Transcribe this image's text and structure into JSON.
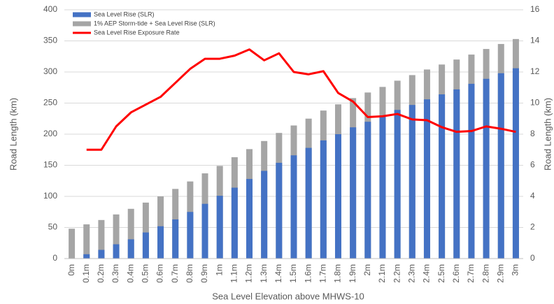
{
  "chart_data": {
    "type": "bar",
    "x_label": "Sea Level Elevation above MHWS-10",
    "y_label": "Road Length (km)",
    "y2_label": "Road Length (km)",
    "categories": [
      "0m",
      "0.1m",
      "0.2m",
      "0.3m",
      "0.4m",
      "0.5m",
      "0.6m",
      "0.7m",
      "0.8m",
      "0.9m",
      "1m",
      "1.1m",
      "1.2m",
      "1.3m",
      "1.4m",
      "1.5m",
      "1.6m",
      "1.7m",
      "1.8m",
      "1.9m",
      "2m",
      "2.1m",
      "2.2m",
      "2.3m",
      "2.4m",
      "2.5m",
      "2.6m",
      "2.7m",
      "2.8m",
      "2.9m",
      "3m"
    ],
    "series": [
      {
        "name": "Sea Level Rise (SLR)",
        "type": "bar",
        "color": "#4472c4",
        "values": [
          0,
          7,
          14,
          23,
          31,
          42,
          52,
          63,
          75,
          88,
          101,
          114,
          128,
          141,
          154,
          166,
          178,
          190,
          200,
          211,
          220,
          229,
          239,
          247,
          256,
          264,
          272,
          281,
          289,
          298,
          306
        ]
      },
      {
        "name": "1% AEP Storm-tide + Sea Level Rise (SLR)",
        "type": "bar",
        "color": "#a5a5a5",
        "values": [
          48,
          55,
          62,
          71,
          80,
          90,
          100,
          112,
          124,
          137,
          149,
          163,
          176,
          189,
          202,
          214,
          225,
          238,
          248,
          258,
          267,
          276,
          286,
          295,
          304,
          312,
          320,
          328,
          337,
          345,
          353
        ]
      },
      {
        "name": "Sea Level Rise Exposure Rate",
        "type": "line",
        "axis": "y2",
        "color": "#ff0000",
        "values": [
          null,
          7.0,
          7.0,
          8.5,
          9.4,
          9.9,
          10.4,
          11.3,
          12.2,
          12.85,
          12.85,
          13.05,
          13.45,
          12.75,
          13.2,
          12.0,
          11.85,
          12.05,
          10.65,
          10.1,
          9.1,
          9.15,
          9.3,
          8.95,
          8.9,
          8.45,
          8.15,
          8.2,
          8.5,
          8.35,
          8.15
        ]
      }
    ],
    "ylim": [
      0,
      400
    ],
    "yticks": [
      0,
      50,
      100,
      150,
      200,
      250,
      300,
      350,
      400
    ],
    "y2lim": [
      0,
      16
    ],
    "y2ticks": [
      0,
      2,
      4,
      6,
      8,
      10,
      12,
      14,
      16
    ],
    "grid": true,
    "legend": "top-left"
  }
}
